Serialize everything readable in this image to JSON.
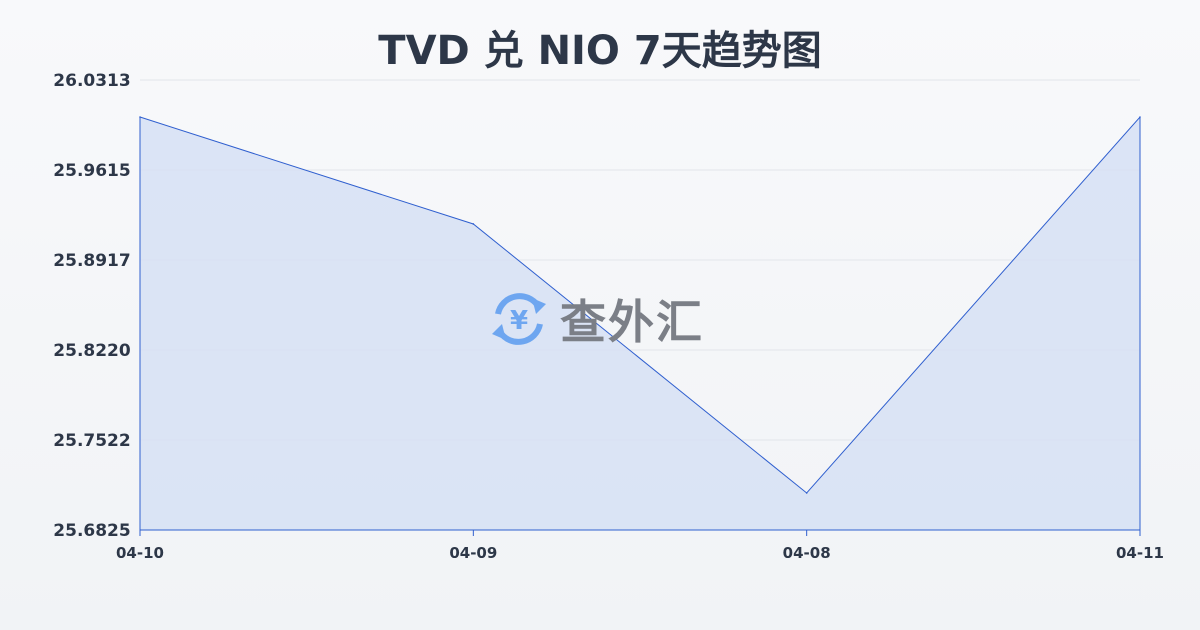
{
  "chart_data": {
    "type": "area",
    "title": "TVD 兑 NIO 7天趋势图",
    "categories": [
      "04-10",
      "04-09",
      "04-08",
      "04-11"
    ],
    "values": [
      26.0026,
      25.9197,
      25.7112,
      26.0026
    ],
    "ylim": [
      25.6825,
      26.0313
    ],
    "yticks": [
      "26.0313",
      "25.9615",
      "25.8917",
      "25.8220",
      "25.7522",
      "25.6825"
    ],
    "xlabel": "",
    "ylabel": "",
    "grid": true,
    "colors": {
      "line": "#2f5fcf",
      "fill": "#d6e0f5"
    }
  },
  "watermark": {
    "text": "查外汇",
    "icon": "yuan-exchange-icon",
    "color": "#6ea6f0"
  }
}
